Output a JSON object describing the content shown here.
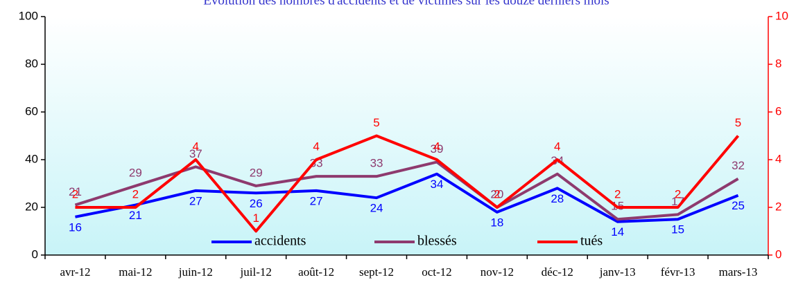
{
  "chart_data": {
    "type": "line",
    "title": "Evolution des nombres d'accidents et de victimes sur les douze derniers mois",
    "categories": [
      "avr-12",
      "mai-12",
      "juin-12",
      "juil-12",
      "août-12",
      "sept-12",
      "oct-12",
      "nov-12",
      "déc-12",
      "janv-13",
      "févr-13",
      "mars-13"
    ],
    "series": [
      {
        "name": "accidents",
        "color": "#0000ff",
        "values": [
          16,
          21,
          27,
          26,
          27,
          24,
          34,
          18,
          28,
          14,
          15,
          25
        ]
      },
      {
        "name": "blessés",
        "color": "#8e3a6e",
        "values": [
          21,
          29,
          37,
          29,
          33,
          33,
          39,
          20,
          34,
          15,
          17,
          32
        ]
      },
      {
        "name": "tués",
        "color": "#ff0000",
        "axis": "y2",
        "values": [
          2,
          2,
          4,
          1,
          4,
          5,
          4,
          2,
          4,
          2,
          2,
          5
        ]
      }
    ],
    "ylim": [
      0,
      100
    ],
    "yticks": [
      0,
      20,
      40,
      60,
      80,
      100
    ],
    "y2lim": [
      0,
      10
    ],
    "y2ticks": [
      0,
      2,
      4,
      6,
      8,
      10
    ],
    "legend": "bottom"
  }
}
